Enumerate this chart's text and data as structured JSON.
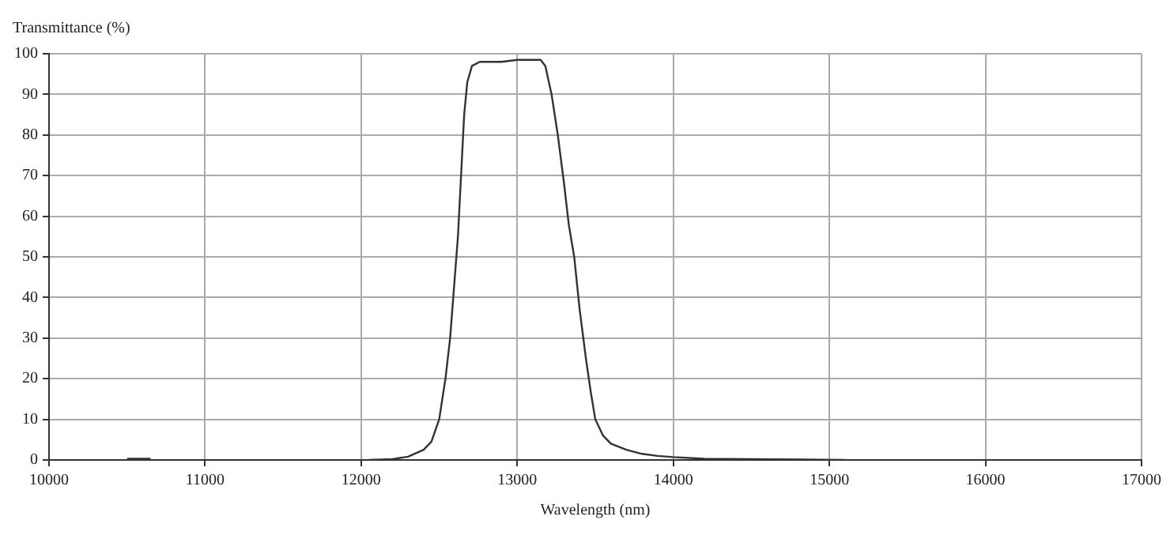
{
  "chart_data": {
    "type": "line",
    "ylabel": "Transmittance (%)",
    "xlabel": "Wavelength (nm)",
    "xlim": [
      10000,
      17000
    ],
    "xticks": [
      10000,
      11000,
      12000,
      13000,
      14000,
      15000,
      16000,
      17000
    ],
    "ylim": [
      0,
      100
    ],
    "yticks": [
      0,
      10,
      20,
      30,
      40,
      50,
      60,
      70,
      80,
      90,
      100
    ],
    "grid": true,
    "line_style": "solid",
    "marker": "none",
    "series": [
      {
        "color": "#333333",
        "x": [
          10500,
          10650,
          10660,
          12050,
          12200,
          12300,
          12400,
          12450,
          12500,
          12540,
          12570,
          12600,
          12620,
          12640,
          12660,
          12680,
          12710,
          12760,
          12900,
          13000,
          13150,
          13180,
          13220,
          13260,
          13300,
          13330,
          13365,
          13400,
          13440,
          13470,
          13500,
          13550,
          13600,
          13700,
          13800,
          13900,
          14000,
          14200,
          14500,
          15100
        ],
        "values": [
          0.3,
          0.3,
          null,
          0,
          0.2,
          0.8,
          2.5,
          4.5,
          10,
          20,
          30,
          45,
          55,
          70,
          85,
          93,
          97,
          98,
          98,
          98.5,
          98.5,
          97,
          90,
          80,
          68,
          58,
          50,
          37,
          25,
          17,
          10,
          6,
          4,
          2.5,
          1.5,
          1,
          0.7,
          0.3,
          0.2,
          0
        ]
      }
    ]
  }
}
